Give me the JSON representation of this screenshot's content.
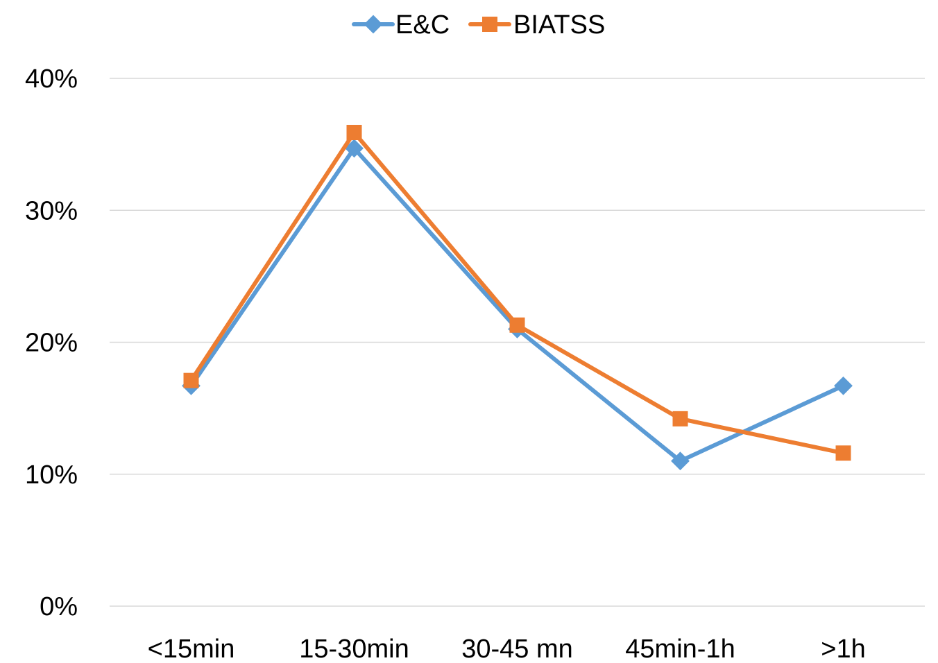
{
  "chart_data": {
    "type": "line",
    "categories": [
      "<15min",
      "15-30min",
      "30-45 mn",
      "45min-1h",
      ">1h"
    ],
    "series": [
      {
        "name": "E&C",
        "color": "#5b9bd5",
        "marker": "diamond",
        "values": [
          0.167,
          0.347,
          0.21,
          0.11,
          0.167
        ]
      },
      {
        "name": "BIATSS",
        "color": "#ed7d31",
        "marker": "square",
        "values": [
          0.171,
          0.359,
          0.213,
          0.142,
          0.116
        ]
      }
    ],
    "yticks": [
      "0%",
      "10%",
      "20%",
      "30%",
      "40%"
    ],
    "ytick_values": [
      0,
      0.1,
      0.2,
      0.3,
      0.4
    ],
    "ylim": [
      0,
      0.4
    ],
    "grid": true,
    "legend_position": "top-center",
    "title": "",
    "xlabel": "",
    "ylabel": ""
  }
}
